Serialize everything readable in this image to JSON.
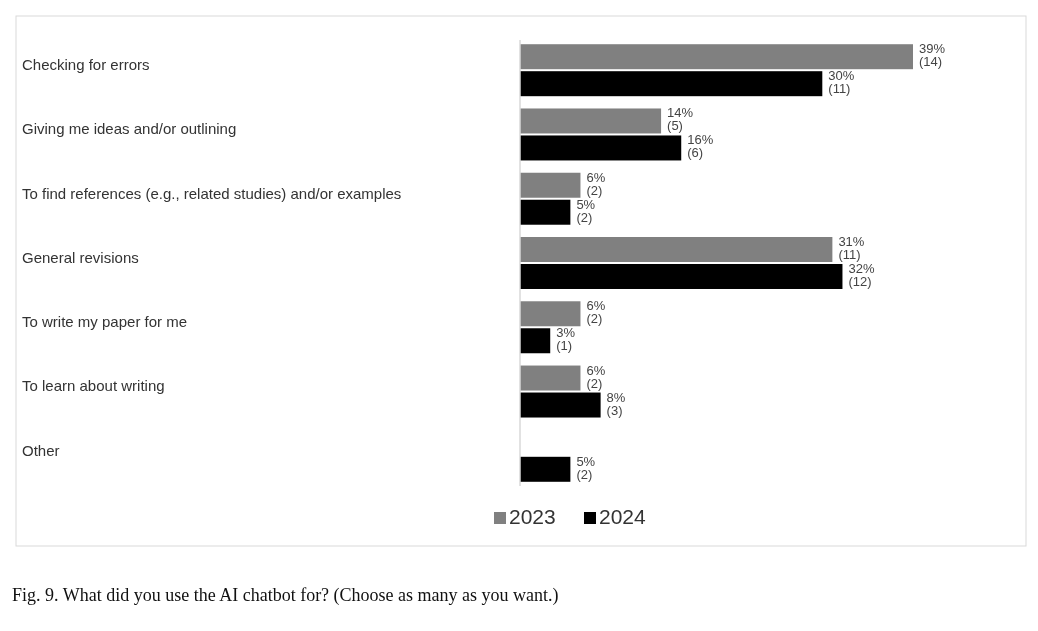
{
  "chart_data": {
    "type": "bar",
    "orientation": "horizontal",
    "categories": [
      "Checking for errors",
      "Giving me ideas and/or outlining",
      "To find references (e.g., related studies) and/or examples",
      "General revisions",
      "To write my paper for me",
      "To learn about writing",
      "Other"
    ],
    "series": [
      {
        "name": "2023",
        "color": "#808080",
        "values": [
          39,
          14,
          6,
          31,
          6,
          6,
          null
        ],
        "value_labels": [
          "39%\n(14)",
          "14%\n(5)",
          "6%\n(2)",
          "31%\n(11)",
          "6%\n(2)",
          "6%\n(2)",
          null
        ]
      },
      {
        "name": "2024",
        "color": "#000000",
        "values": [
          30,
          16,
          5,
          32,
          3,
          8,
          5
        ],
        "value_labels": [
          "30%\n(11)",
          "16%\n(6)",
          "5%\n(2)",
          "32%\n(12)",
          "3%\n(1)",
          "8%\n(3)",
          "5%\n(2)"
        ]
      }
    ],
    "legend": "bottom",
    "annotations": [
      "Fig. 9. What did you use the AI chatbot for? (Choose as many as you want.)"
    ]
  }
}
